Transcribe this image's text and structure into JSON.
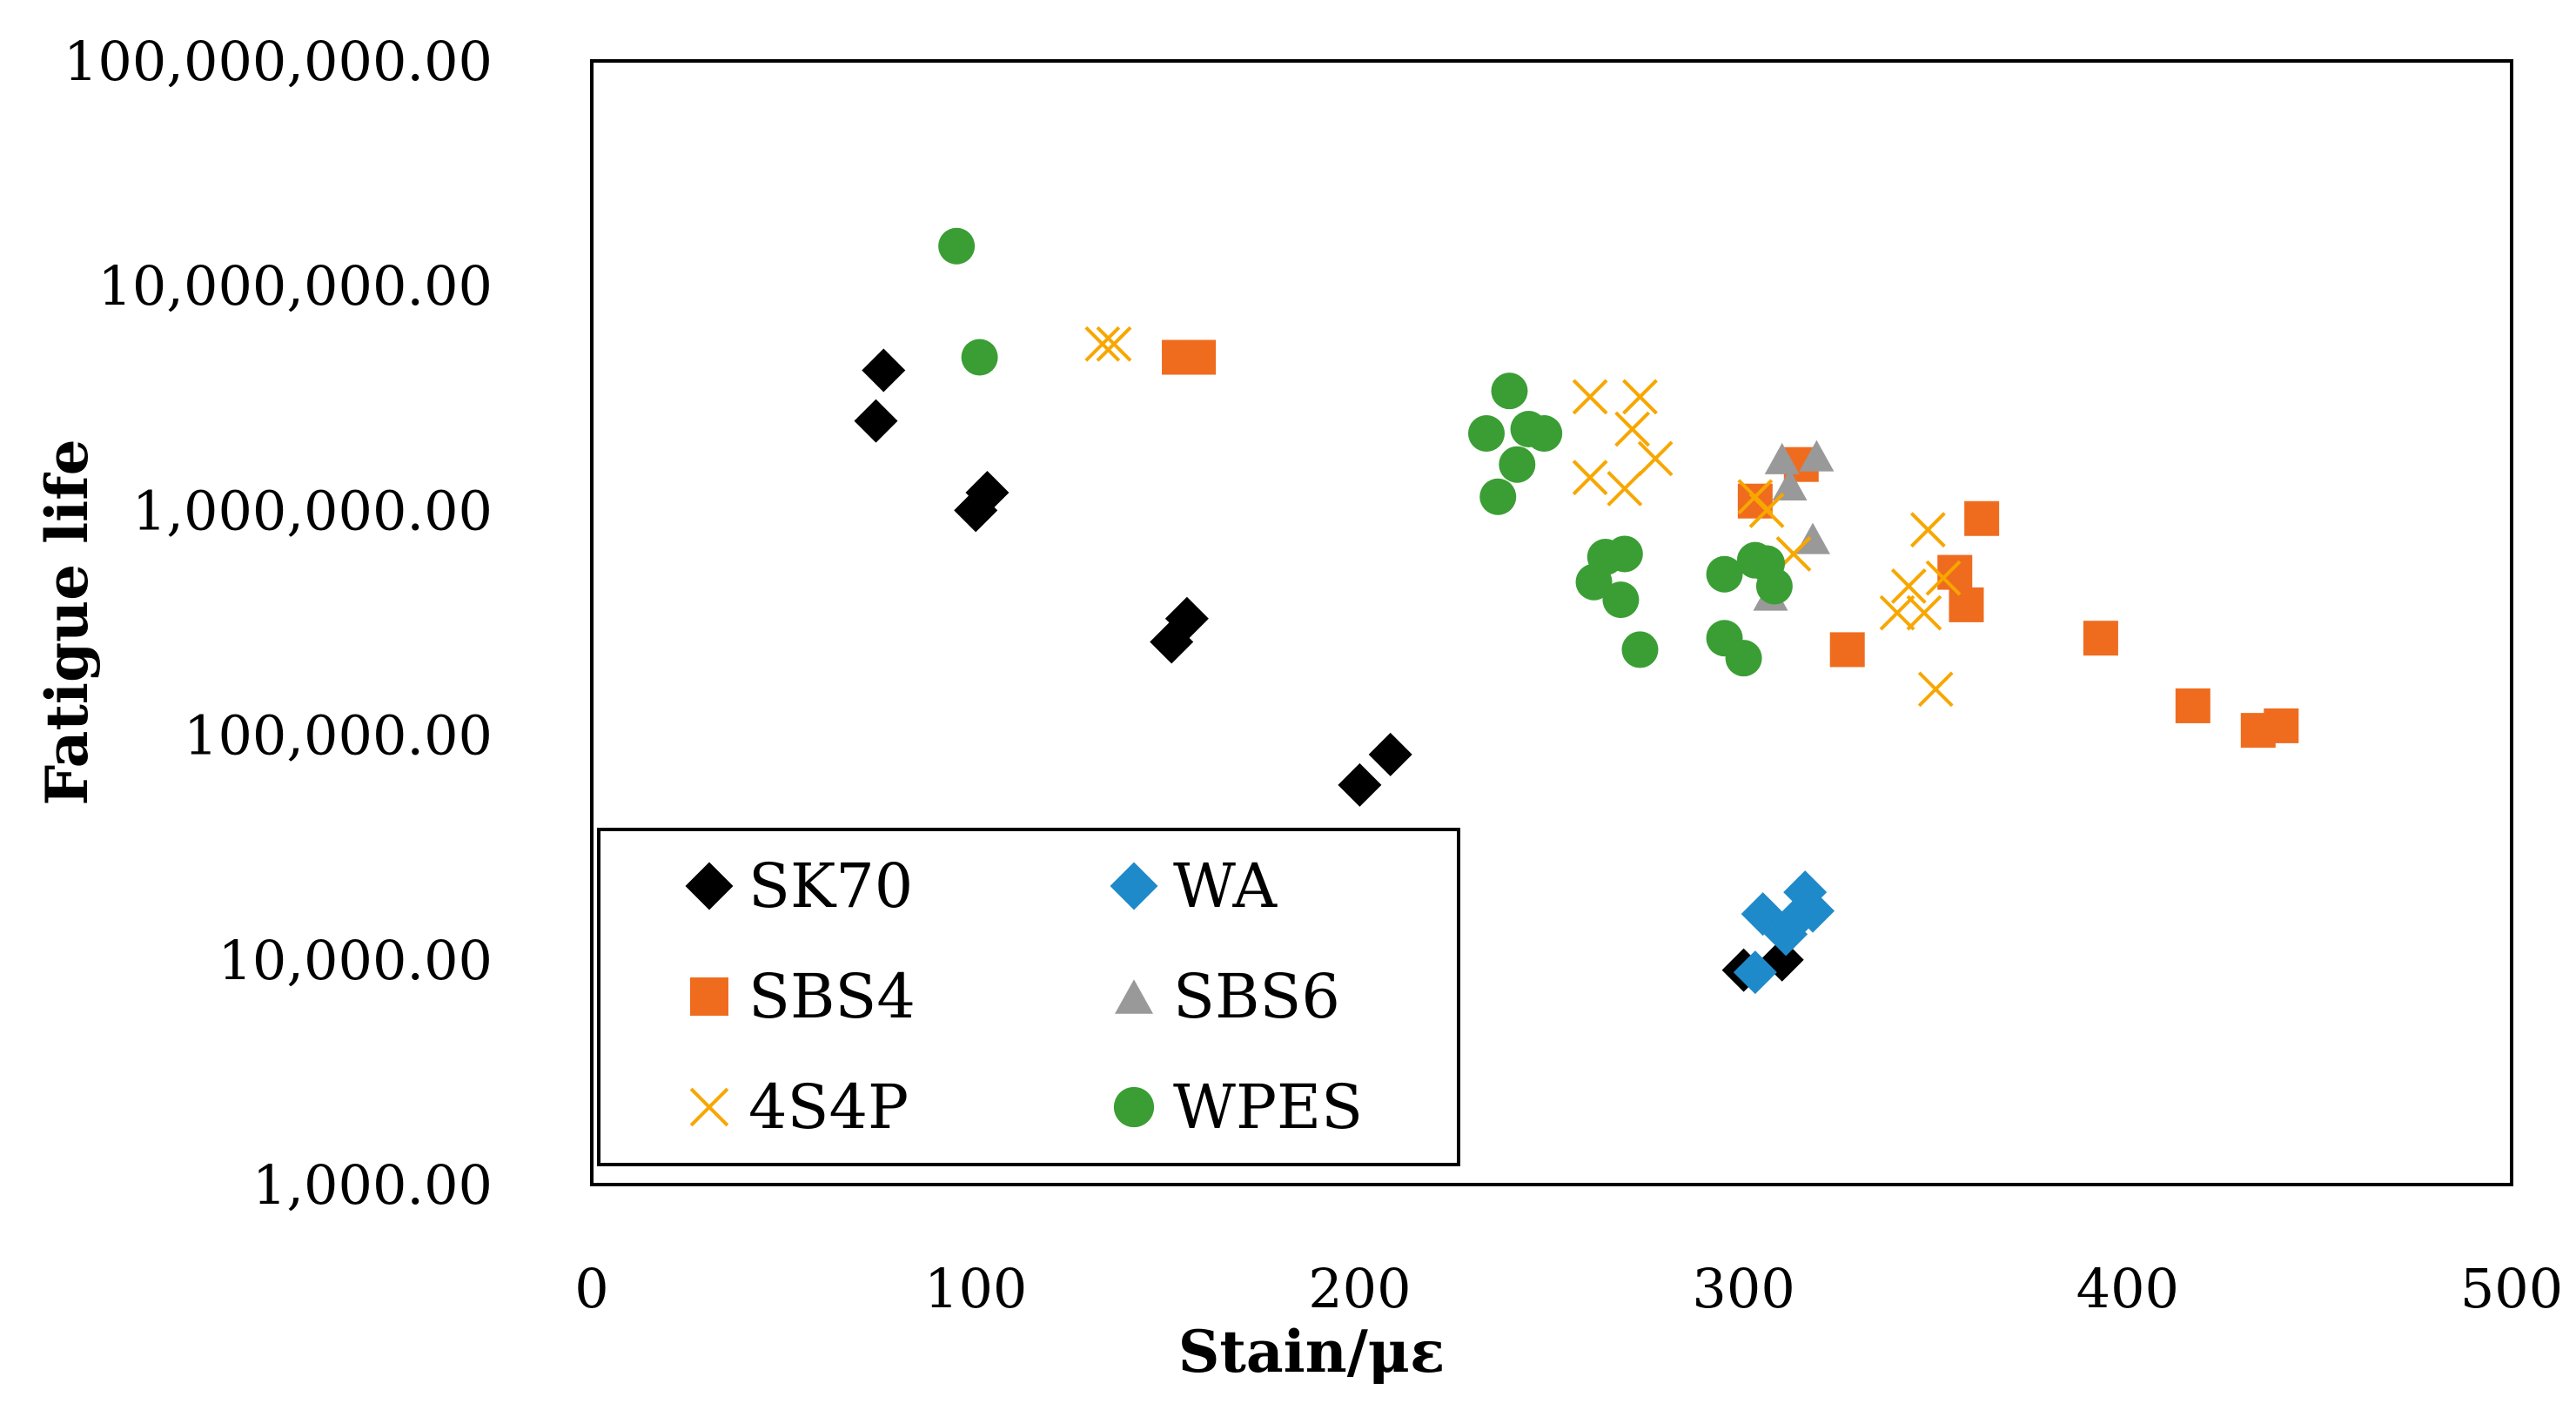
{
  "chart_data": {
    "type": "scatter",
    "title": "",
    "xlabel": "Stain/με",
    "ylabel": "Fatigue life",
    "xlim": [
      0,
      500
    ],
    "ylim": [
      1000,
      100000000
    ],
    "yscale": "log",
    "grid": false,
    "legend_position": "bottom-left",
    "x_ticks": [
      {
        "value": 0,
        "label": "0"
      },
      {
        "value": 100,
        "label": "100"
      },
      {
        "value": 200,
        "label": "200"
      },
      {
        "value": 300,
        "label": "300"
      },
      {
        "value": 400,
        "label": "400"
      },
      {
        "value": 500,
        "label": "500"
      }
    ],
    "y_ticks": [
      {
        "value": 1000,
        "label": "1,000.00"
      },
      {
        "value": 10000,
        "label": "10,000.00"
      },
      {
        "value": 100000,
        "label": "100,000.00"
      },
      {
        "value": 1000000,
        "label": "1,000,000.00"
      },
      {
        "value": 10000000,
        "label": "10,000,000.00"
      },
      {
        "value": 100000000,
        "label": "100,000,000.00"
      }
    ],
    "series": [
      {
        "name": "SK70",
        "marker": "diamond",
        "color": "#000000",
        "points": [
          [
            76,
            4200000
          ],
          [
            74,
            2500000
          ],
          [
            100,
            1000000
          ],
          [
            103,
            1200000
          ],
          [
            151,
            260000
          ],
          [
            155,
            330000
          ],
          [
            200,
            60000
          ],
          [
            208,
            82000
          ],
          [
            300,
            9000
          ],
          [
            310,
            10000
          ]
        ]
      },
      {
        "name": "WA",
        "marker": "diamond",
        "color": "#1f8ac9",
        "points": [
          [
            303,
            8800
          ],
          [
            305,
            16000
          ],
          [
            311,
            13000
          ],
          [
            315,
            16000
          ],
          [
            316,
            20000
          ],
          [
            318,
            16500
          ]
        ]
      },
      {
        "name": "SBS4",
        "marker": "square",
        "color": "#ef6c1f",
        "points": [
          [
            153,
            4800000
          ],
          [
            158,
            4800000
          ],
          [
            303,
            1100000
          ],
          [
            315,
            1600000
          ],
          [
            327,
            240000
          ],
          [
            355,
            530000
          ],
          [
            358,
            380000
          ],
          [
            362,
            920000
          ],
          [
            393,
            270000
          ],
          [
            417,
            135000
          ],
          [
            434,
            105000
          ],
          [
            440,
            110000
          ]
        ]
      },
      {
        "name": "SBS6",
        "marker": "triangle",
        "color": "#999999",
        "points": [
          [
            307,
            420000
          ],
          [
            310,
            1700000
          ],
          [
            312,
            1300000
          ],
          [
            318,
            750000
          ],
          [
            319,
            1750000
          ]
        ]
      },
      {
        "name": "4S4P",
        "marker": "cross",
        "color": "#f7a700",
        "points": [
          [
            133,
            5500000
          ],
          [
            136,
            5500000
          ],
          [
            260,
            3200000
          ],
          [
            260,
            1400000
          ],
          [
            269,
            1250000
          ],
          [
            271,
            2300000
          ],
          [
            273,
            3200000
          ],
          [
            277,
            1700000
          ],
          [
            303,
            1150000
          ],
          [
            306,
            1000000
          ],
          [
            313,
            640000
          ],
          [
            340,
            350000
          ],
          [
            343,
            460000
          ],
          [
            347,
            350000
          ],
          [
            348,
            820000
          ],
          [
            350,
            160000
          ],
          [
            352,
            500000
          ]
        ]
      },
      {
        "name": "WPES",
        "marker": "circle",
        "color": "#3a9e34",
        "points": [
          [
            95,
            15000000
          ],
          [
            101,
            4800000
          ],
          [
            233,
            2200000
          ],
          [
            236,
            1150000
          ],
          [
            239,
            3400000
          ],
          [
            241,
            1600000
          ],
          [
            244,
            2300000
          ],
          [
            248,
            2200000
          ],
          [
            261,
            480000
          ],
          [
            264,
            620000
          ],
          [
            268,
            400000
          ],
          [
            269,
            640000
          ],
          [
            273,
            240000
          ],
          [
            295,
            520000
          ],
          [
            295,
            270000
          ],
          [
            300,
            220000
          ],
          [
            303,
            600000
          ],
          [
            306,
            580000
          ],
          [
            308,
            460000
          ]
        ]
      }
    ]
  }
}
